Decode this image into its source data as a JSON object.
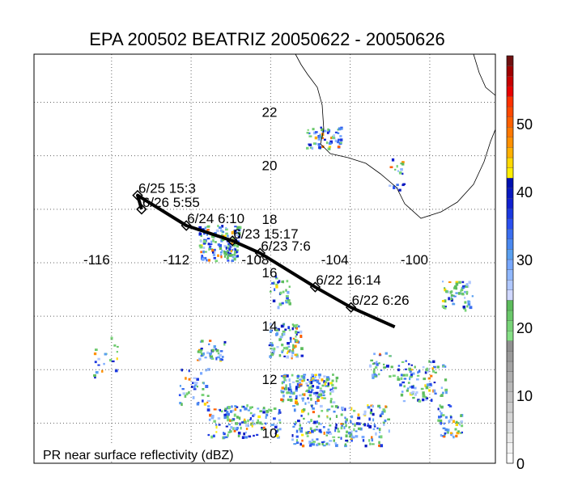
{
  "title": "EPA 200502 BEATRIZ 20050622 - 20050626",
  "caption": "PR near surface reflectivity (dBZ)",
  "chart_data": {
    "type": "map",
    "title": "EPA 200502 BEATRIZ 20050622 - 20050626",
    "lon_ticks": [
      -116,
      -112,
      -108,
      -104,
      -100
    ],
    "lat_ticks": [
      22,
      20,
      18,
      16,
      14,
      12,
      10
    ],
    "lon_labels": [
      "-116",
      "-112",
      "-108",
      "-104",
      "-100"
    ],
    "lat_labels": [
      "22",
      "20",
      "18",
      "16",
      "14",
      "12",
      "10"
    ],
    "lon_range": [
      -119.9,
      -96.7
    ],
    "lat_range": [
      8.5,
      23.8
    ],
    "grid": true,
    "track": [
      {
        "lon": -101.76,
        "lat": 13.6,
        "label": ""
      },
      {
        "lon": -103.96,
        "lat": 14.33,
        "label": "6/22 6:26"
      },
      {
        "lon": -105.76,
        "lat": 15.09,
        "label": "6/22 16:14"
      },
      {
        "lon": -108.53,
        "lat": 16.36,
        "label": "6/23 7:6"
      },
      {
        "lon": -109.92,
        "lat": 16.82,
        "label": "6/23 15:17"
      },
      {
        "lon": -112.24,
        "lat": 17.39,
        "label": "6/24 6:10"
      },
      {
        "lon": -114.69,
        "lat": 18.52,
        "label": "6/25 15:3"
      },
      {
        "lon": -114.49,
        "lat": 18.0,
        "label": "6/26 5:55"
      }
    ],
    "colorbar": {
      "label": "dBZ",
      "range": [
        0,
        60
      ],
      "ticks": [
        "0",
        "10",
        "20",
        "30",
        "40",
        "50"
      ],
      "tick_values": [
        0,
        10,
        20,
        30,
        40,
        50
      ],
      "colors": [
        "#ffffff",
        "#f4f4f4",
        "#eaeaea",
        "#e0e0e0",
        "#d6d6d6",
        "#cccccc",
        "#c2c2c2",
        "#b8b8b8",
        "#aeaeae",
        "#a4a4a4",
        "#9a9a9a",
        "#909090",
        "#86e086",
        "#78d478",
        "#6ac86a",
        "#5cbc5c",
        "#d0d8ff",
        "#b0c8ff",
        "#90b8ff",
        "#78a8ff",
        "#5aa0f0",
        "#4a88f0",
        "#3a6ef0",
        "#2a50f0",
        "#1a38e0",
        "#1020d0",
        "#0818c0",
        "#0010b0",
        "#ffee00",
        "#ffd800",
        "#ffb000",
        "#ff9000",
        "#ff7800",
        "#ff6000",
        "#ff4800",
        "#ff3000",
        "#e80000",
        "#c80000",
        "#a00000",
        "#701010"
      ]
    }
  }
}
